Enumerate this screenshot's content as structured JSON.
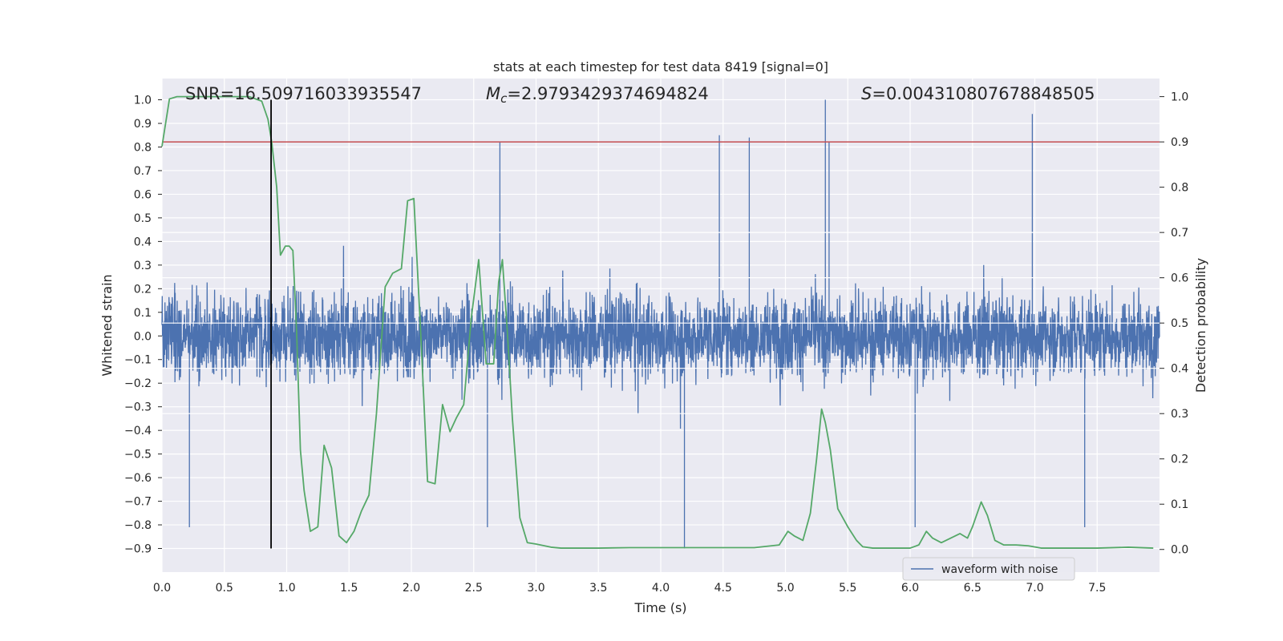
{
  "chart_data": {
    "type": "line",
    "title": "stats at each timestep for test data 8419 [signal=0]",
    "xlabel": "Time (s)",
    "ylabel_left": "Whitened strain",
    "ylabel_right": "Detection probability",
    "xlim": [
      0,
      8
    ],
    "ylim_left": [
      -1.0,
      1.09
    ],
    "ylim_right": [
      -0.05,
      1.04
    ],
    "x_ticks": [
      0.0,
      0.5,
      1.0,
      1.5,
      2.0,
      2.5,
      3.0,
      3.5,
      4.0,
      4.5,
      5.0,
      5.5,
      6.0,
      6.5,
      7.0,
      7.5
    ],
    "x_tick_labels": [
      "0.0",
      "0.5",
      "1.0",
      "1.5",
      "2.0",
      "2.5",
      "3.0",
      "3.5",
      "4.0",
      "4.5",
      "5.0",
      "5.5",
      "6.0",
      "6.5",
      "7.0",
      "7.5"
    ],
    "y_left_ticks": [
      1.0,
      0.9,
      0.8,
      0.7,
      0.6,
      0.5,
      0.4,
      0.3,
      0.2,
      0.1,
      0.0,
      -0.1,
      -0.2,
      -0.3,
      -0.4,
      -0.5,
      -0.6,
      -0.7,
      -0.8,
      -0.9
    ],
    "y_left_tick_labels": [
      "1.0",
      "0.9",
      "0.8",
      "0.7",
      "0.6",
      "0.5",
      "0.4",
      "0.3",
      "0.2",
      "0.1",
      "0.0",
      "−0.1",
      "−0.2",
      "−0.3",
      "−0.4",
      "−0.5",
      "−0.6",
      "−0.7",
      "−0.8",
      "−0.9"
    ],
    "y_right_ticks": [
      1.0,
      0.9,
      0.8,
      0.7,
      0.6,
      0.5,
      0.4,
      0.3,
      0.2,
      0.1,
      0.0
    ],
    "y_right_tick_labels": [
      "1.0",
      "0.9",
      "0.8",
      "0.7",
      "0.6",
      "0.5",
      "0.4",
      "0.3",
      "0.2",
      "0.1",
      "0.0"
    ],
    "annotations": {
      "snr": "SNR=16.509716033935547",
      "mc_symbol": "M",
      "mc_sub": "c",
      "mc_value": "=2.9793429374694824",
      "s_symbol": "S",
      "s_value": "=0.004310807678848505"
    },
    "threshold_right": 0.9,
    "marker_time": 0.875,
    "marker_range": [
      -0.9,
      1.0
    ],
    "legend": {
      "label": "waveform with noise",
      "position": "lower-right"
    },
    "colors": {
      "background": "#eaeaf2",
      "grid": "#ffffff",
      "waveform": "#4c72b0",
      "probability": "#55a868",
      "threshold": "#c44e52",
      "marker": "#000000",
      "text": "#262626"
    },
    "series": [
      {
        "name": "waveform with noise",
        "axis": "left",
        "description": "dense noisy whitened strain over 0-8 s",
        "amplitude_typical": 0.28,
        "peaks": [
          {
            "t": 2.71,
            "v": 0.82
          },
          {
            "t": 4.47,
            "v": 0.85
          },
          {
            "t": 4.71,
            "v": 0.84
          },
          {
            "t": 5.32,
            "v": 1.0
          },
          {
            "t": 5.35,
            "v": 0.82
          },
          {
            "t": 6.98,
            "v": 0.94
          },
          {
            "t": 4.19,
            "v": -0.9
          },
          {
            "t": 0.22,
            "v": -0.81
          },
          {
            "t": 2.61,
            "v": -0.81
          },
          {
            "t": 7.4,
            "v": -0.81
          },
          {
            "t": 6.04,
            "v": -0.81
          }
        ]
      },
      {
        "name": "Detection probability",
        "axis": "right",
        "x": [
          0.0,
          0.06,
          0.12,
          0.25,
          0.5,
          0.7,
          0.8,
          0.85,
          0.88,
          0.92,
          0.95,
          0.99,
          1.02,
          1.05,
          1.08,
          1.11,
          1.14,
          1.19,
          1.25,
          1.3,
          1.36,
          1.42,
          1.48,
          1.54,
          1.6,
          1.66,
          1.72,
          1.79,
          1.85,
          1.92,
          1.97,
          2.02,
          2.08,
          2.13,
          2.19,
          2.25,
          2.31,
          2.36,
          2.42,
          2.48,
          2.54,
          2.6,
          2.66,
          2.7,
          2.73,
          2.77,
          2.81,
          2.87,
          2.93,
          3.0,
          3.12,
          3.2,
          3.35,
          3.5,
          3.75,
          4.0,
          4.25,
          4.5,
          4.75,
          4.95,
          5.02,
          5.07,
          5.14,
          5.2,
          5.25,
          5.29,
          5.32,
          5.36,
          5.42,
          5.5,
          5.57,
          5.62,
          5.7,
          5.85,
          6.0,
          6.07,
          6.13,
          6.18,
          6.25,
          6.4,
          6.46,
          6.5,
          6.57,
          6.62,
          6.68,
          6.75,
          6.85,
          6.95,
          7.05,
          7.2,
          7.5,
          7.75,
          7.95
        ],
        "values": [
          0.89,
          0.995,
          1.0,
          1.0,
          1.0,
          1.0,
          0.99,
          0.95,
          0.9,
          0.8,
          0.65,
          0.67,
          0.67,
          0.66,
          0.48,
          0.22,
          0.13,
          0.04,
          0.05,
          0.23,
          0.18,
          0.03,
          0.015,
          0.04,
          0.085,
          0.12,
          0.3,
          0.58,
          0.61,
          0.62,
          0.77,
          0.775,
          0.45,
          0.15,
          0.145,
          0.32,
          0.26,
          0.29,
          0.32,
          0.51,
          0.64,
          0.41,
          0.41,
          0.59,
          0.64,
          0.48,
          0.29,
          0.07,
          0.015,
          0.012,
          0.005,
          0.003,
          0.003,
          0.003,
          0.004,
          0.004,
          0.004,
          0.004,
          0.004,
          0.01,
          0.04,
          0.03,
          0.02,
          0.08,
          0.2,
          0.31,
          0.28,
          0.22,
          0.09,
          0.05,
          0.02,
          0.006,
          0.003,
          0.003,
          0.003,
          0.01,
          0.04,
          0.025,
          0.015,
          0.035,
          0.025,
          0.05,
          0.105,
          0.075,
          0.02,
          0.01,
          0.01,
          0.008,
          0.003,
          0.003,
          0.003,
          0.005,
          0.003
        ]
      }
    ]
  }
}
